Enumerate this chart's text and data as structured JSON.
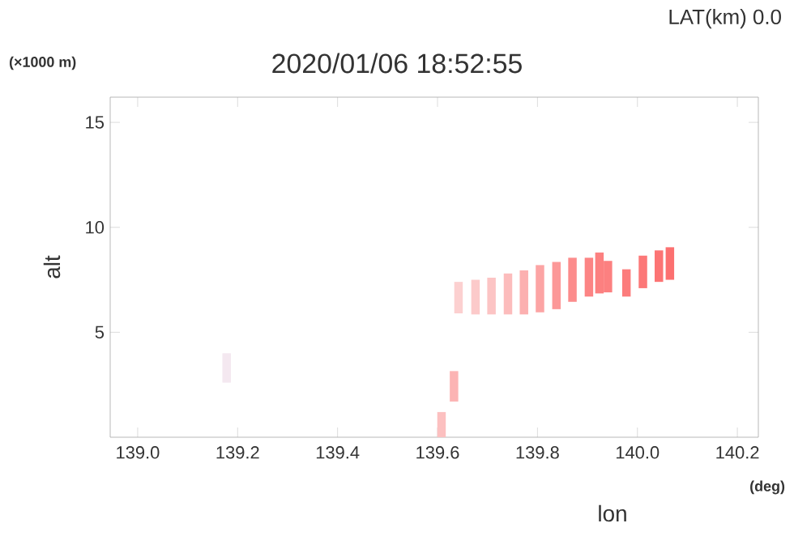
{
  "chart_data": {
    "type": "bar",
    "title": "2020/01/06 18:52:55",
    "subtitle": "LAT(km) 0.0",
    "xlabel": "lon",
    "ylabel": "alt",
    "annotations": [
      "(×1000 m)",
      "(deg)"
    ],
    "x": [
      139.178,
      139.608,
      139.633,
      139.642,
      139.676,
      139.708,
      139.741,
      139.773,
      139.805,
      139.838,
      139.87,
      139.903,
      139.924,
      139.941,
      139.978,
      140.011,
      140.043,
      140.065
    ],
    "base": [
      2.6,
      0,
      1.7,
      5.9,
      5.85,
      5.85,
      5.85,
      5.85,
      5.95,
      6.1,
      6.45,
      6.7,
      6.85,
      6.9,
      6.7,
      7.1,
      7.4,
      7.5
    ],
    "values": [
      1.4,
      1.2,
      1.45,
      1.5,
      1.65,
      1.75,
      1.95,
      2.1,
      2.25,
      2.25,
      2.1,
      1.85,
      1.95,
      1.5,
      1.3,
      1.55,
      1.5,
      1.55
    ],
    "colors": [
      "#f4e8f0",
      "#fcc0c0",
      "#fcb4b4",
      "#fcd0d0",
      "#fccaca",
      "#fcc4c4",
      "#fcbcbc",
      "#fcb0b0",
      "#fca4a4",
      "#fc9898",
      "#fc8c8c",
      "#fc8484",
      "#fc8080",
      "#fc8080",
      "#fc7c7c",
      "#fc7878",
      "#fc7474",
      "#fc7070"
    ],
    "xlim": [
      138.945,
      140.242
    ],
    "ylim": [
      0,
      16.2
    ],
    "xticks": [
      {
        "value": 139.0,
        "label": "139.0"
      },
      {
        "value": 139.2,
        "label": "139.2"
      },
      {
        "value": 139.4,
        "label": "139.4"
      },
      {
        "value": 139.6,
        "label": "139.6"
      },
      {
        "value": 139.8,
        "label": "139.8"
      },
      {
        "value": 140.0,
        "label": "140.0"
      },
      {
        "value": 140.2,
        "label": "140.2"
      }
    ],
    "yticks": [
      5,
      10,
      15
    ]
  }
}
